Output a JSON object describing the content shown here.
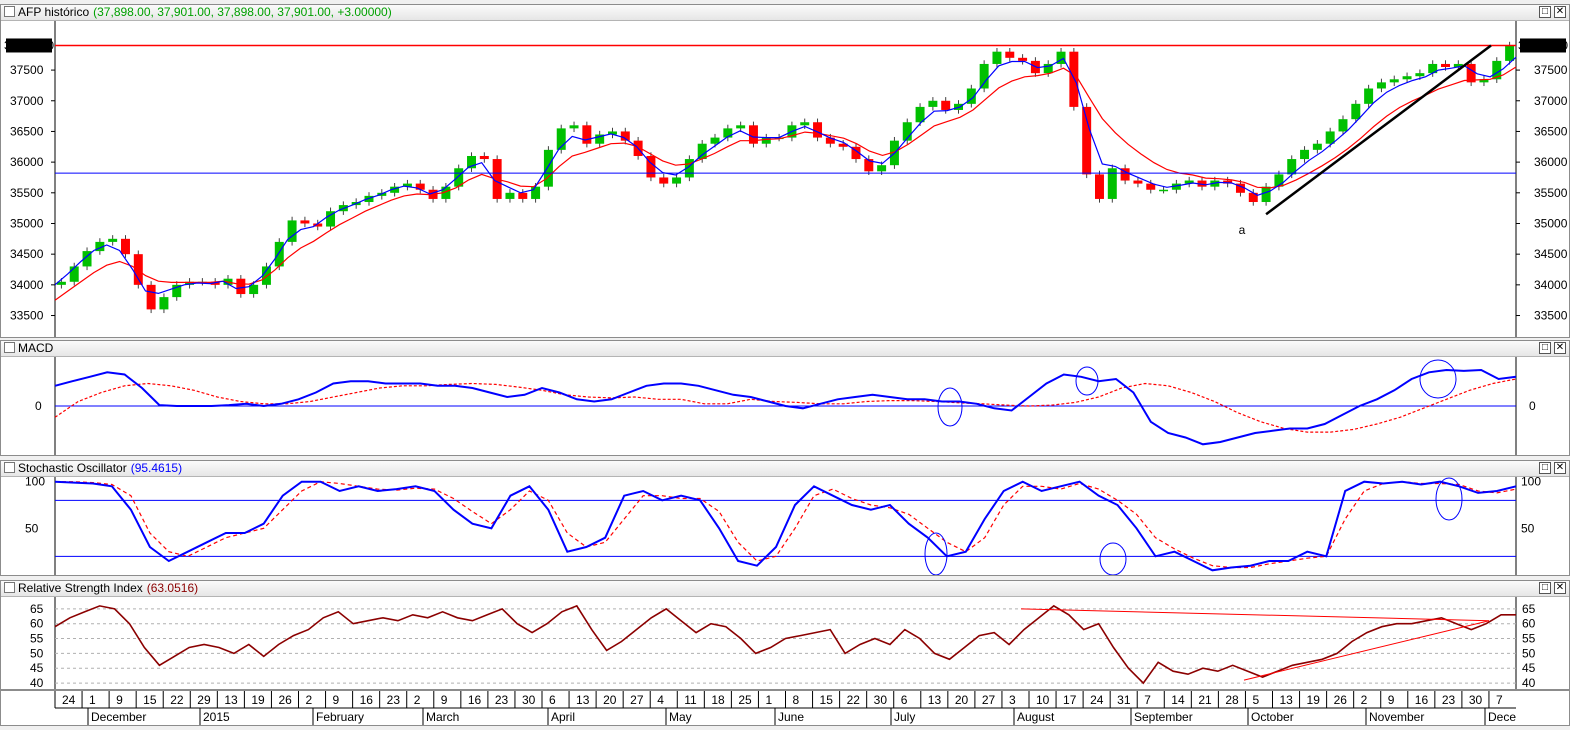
{
  "panes": {
    "price": {
      "title": "AFP histórico",
      "value_text": "(37,898.00, 37,901.00, 37,898.00, 37,901.00, +3.00000)",
      "value_color": "#00a000",
      "last_label": "37901.00",
      "ticks": [
        "37500",
        "37000",
        "36500",
        "36000",
        "35500",
        "35000",
        "34500",
        "34000",
        "33500"
      ],
      "wave_label": "a"
    },
    "macd": {
      "title": "MACD",
      "value_text": "",
      "ticks": [
        "0"
      ]
    },
    "stoch": {
      "title": "Stochastic Oscillator",
      "value_text": "(95.4615)",
      "value_color": "#0000ff",
      "ticks": [
        "100",
        "50"
      ]
    },
    "rsi": {
      "title": "Relative Strength Index",
      "value_text": "(63.0516)",
      "value_color": "#8b0000",
      "ticks": [
        "65",
        "60",
        "55",
        "50",
        "45",
        "40"
      ]
    }
  },
  "window_buttons": {
    "maximize": "□",
    "close": "✕"
  },
  "time_axis": {
    "day_labels": [
      "24",
      "1",
      "9",
      "15",
      "22",
      "29",
      "13",
      "19",
      "26",
      "2",
      "9",
      "16",
      "23",
      "2",
      "9",
      "16",
      "23",
      "30",
      "6",
      "13",
      "20",
      "27",
      "4",
      "11",
      "18",
      "25",
      "1",
      "8",
      "15",
      "22",
      "30",
      "6",
      "13",
      "20",
      "27",
      "3",
      "10",
      "17",
      "24",
      "31",
      "7",
      "14",
      "21",
      "28",
      "5",
      "13",
      "19",
      "26",
      "2",
      "9",
      "16",
      "23",
      "30",
      "7"
    ],
    "month_labels": [
      "December",
      "2015",
      "February",
      "March",
      "April",
      "May",
      "June",
      "July",
      "August",
      "September",
      "October",
      "November",
      "Dece"
    ]
  },
  "colors": {
    "candle_up": "#00c000",
    "candle_down": "#ff0000",
    "macd_line": "#0000ff",
    "signal_line": "#ff0000",
    "rsi_line": "#8b0000",
    "level_line": "#0000ff",
    "resistance_line": "#ff0000",
    "trend_line": "#000000"
  },
  "chart_data": [
    {
      "type": "line",
      "title": "AFP histórico",
      "ylim": [
        33150,
        38300
      ],
      "price_levels": {
        "resistance": 37901,
        "support": 35820
      },
      "last_close": 37901,
      "series": [
        {
          "name": "close",
          "values": [
            34050,
            34300,
            34550,
            34700,
            34750,
            34500,
            34000,
            33600,
            33800,
            34000,
            34050,
            34050,
            34000,
            34100,
            33850,
            34000,
            34300,
            34700,
            35050,
            35000,
            34950,
            35200,
            35300,
            35350,
            35450,
            35500,
            35600,
            35650,
            35550,
            35400,
            35600,
            35900,
            36100,
            36050,
            35400,
            35500,
            35400,
            35600,
            36200,
            36550,
            36600,
            36300,
            36450,
            36500,
            36350,
            36100,
            35750,
            35650,
            35750,
            36050,
            36300,
            36400,
            36550,
            36600,
            36300,
            36400,
            36400,
            36600,
            36650,
            36400,
            36300,
            36250,
            36050,
            35850,
            35950,
            36350,
            36650,
            36900,
            37000,
            36850,
            36950,
            37200,
            37600,
            37800,
            37700,
            37650,
            37450,
            37600,
            37800,
            36900,
            35800,
            35400,
            35900,
            35700,
            35650,
            35550,
            35550,
            35650,
            35700,
            35600,
            35700,
            35650,
            35500,
            35350,
            35600,
            35800,
            36050,
            36200,
            36300,
            36500,
            36700,
            36950,
            37200,
            37300,
            37350,
            37400,
            37450,
            37600,
            37550,
            37600,
            37300,
            37350,
            37650,
            37901
          ]
        },
        {
          "name": "moving-average-fast",
          "values": [
            34000,
            34180,
            34380,
            34560,
            34650,
            34560,
            34250,
            33900,
            33860,
            33930,
            34000,
            34030,
            34020,
            34060,
            33940,
            33970,
            34140,
            34420,
            34740,
            34900,
            34950,
            35100,
            35220,
            35300,
            35390,
            35460,
            35550,
            35610,
            35580,
            35480,
            35550,
            35730,
            35920,
            35990,
            35700,
            35600,
            35500,
            35550,
            35880,
            36220,
            36420,
            36360,
            36410,
            36460,
            36400,
            36250,
            36000,
            35830,
            35790,
            35920,
            36110,
            36260,
            36410,
            36510,
            36410,
            36400,
            36400,
            36500,
            36580,
            36490,
            36390,
            36320,
            36180,
            36020,
            35980,
            36160,
            36410,
            36650,
            36830,
            36840,
            36900,
            37050,
            37330,
            37570,
            37640,
            37640,
            37540,
            37570,
            37690,
            37290,
            36540,
            35970,
            35930,
            35820,
            35730,
            35640,
            35590,
            35620,
            35660,
            35630,
            35670,
            35660,
            35580,
            35460,
            35530,
            35670,
            35860,
            36030,
            36170,
            36340,
            36520,
            36740,
            36970,
            37140,
            37250,
            37330,
            37390,
            37500,
            37530,
            37570,
            37440,
            37390,
            37520,
            37710
          ]
        },
        {
          "name": "moving-average-slow",
          "values": [
            33750,
            33900,
            34050,
            34200,
            34320,
            34380,
            34300,
            34150,
            34060,
            34040,
            34040,
            34040,
            34040,
            34060,
            34020,
            34010,
            34080,
            34240,
            34440,
            34600,
            34710,
            34850,
            34980,
            35090,
            35200,
            35290,
            35380,
            35450,
            35480,
            35470,
            35500,
            35580,
            35710,
            35800,
            35730,
            35680,
            35610,
            35600,
            35730,
            35930,
            36100,
            36160,
            36230,
            36300,
            36310,
            36260,
            36140,
            36020,
            35950,
            35970,
            36050,
            36140,
            36250,
            36350,
            36350,
            36370,
            36380,
            36430,
            36490,
            36470,
            36430,
            36390,
            36300,
            36180,
            36110,
            36170,
            36290,
            36440,
            36590,
            36660,
            36730,
            36850,
            37030,
            37210,
            37320,
            37390,
            37410,
            37450,
            37530,
            37400,
            37050,
            36710,
            36480,
            36290,
            36130,
            35990,
            35880,
            35820,
            35790,
            35740,
            35730,
            35710,
            35670,
            35590,
            35580,
            35620,
            35710,
            35820,
            35940,
            36070,
            36220,
            36390,
            36580,
            36750,
            36890,
            37000,
            37090,
            37190,
            37260,
            37330,
            37340,
            37350,
            37420,
            37550
          ]
        }
      ]
    },
    {
      "type": "line",
      "title": "MACD",
      "ylim": [
        -1,
        1
      ],
      "series": [
        {
          "name": "macd",
          "values": [
            0.45,
            0.55,
            0.65,
            0.75,
            0.7,
            0.4,
            0.02,
            0,
            0,
            0,
            0.02,
            0.05,
            0,
            0.05,
            0.15,
            0.3,
            0.5,
            0.55,
            0.55,
            0.5,
            0.5,
            0.5,
            0.45,
            0.45,
            0.4,
            0.3,
            0.2,
            0.25,
            0.4,
            0.3,
            0.15,
            0.1,
            0.15,
            0.3,
            0.45,
            0.5,
            0.5,
            0.45,
            0.35,
            0.25,
            0.2,
            0.1,
            0.0,
            -0.05,
            0.05,
            0.15,
            0.2,
            0.25,
            0.2,
            0.15,
            0.15,
            0.1,
            0.1,
            0.05,
            -0.05,
            -0.1,
            0.2,
            0.5,
            0.7,
            0.65,
            0.55,
            0.6,
            0.3,
            -0.35,
            -0.6,
            -0.7,
            -0.85,
            -0.8,
            -0.7,
            -0.6,
            -0.55,
            -0.5,
            -0.5,
            -0.4,
            -0.2,
            0.0,
            0.15,
            0.35,
            0.6,
            0.75,
            0.8,
            0.78,
            0.8,
            0.6,
            0.65
          ]
        },
        {
          "name": "signal",
          "values": [
            -0.25,
            0.1,
            0.3,
            0.45,
            0.5,
            0.45,
            0.35,
            0.2,
            0.1,
            0.05,
            0.05,
            0.1,
            0.2,
            0.3,
            0.4,
            0.45,
            0.45,
            0.48,
            0.5,
            0.48,
            0.42,
            0.35,
            0.25,
            0.2,
            0.18,
            0.2,
            0.15,
            0.15,
            0.05,
            0.05,
            0.15,
            0.1,
            0.08,
            0.05,
            0.05,
            0.1,
            0.12,
            0.12,
            0.1,
            0.07,
            0.05,
            0.02,
            0.0,
            0.02,
            0.08,
            0.2,
            0.4,
            0.5,
            0.45,
            0.3,
            0.1,
            -0.15,
            -0.35,
            -0.5,
            -0.58,
            -0.58,
            -0.52,
            -0.4,
            -0.25,
            -0.05,
            0.15,
            0.35,
            0.5,
            0.6
          ]
        }
      ]
    },
    {
      "type": "line",
      "title": "Stochastic Oscillator",
      "ylim": [
        0,
        105
      ],
      "levels": [
        80,
        20
      ],
      "series": [
        {
          "name": "%K",
          "values": [
            100,
            99,
            98,
            95,
            70,
            30,
            15,
            25,
            35,
            45,
            45,
            55,
            85,
            100,
            100,
            90,
            95,
            90,
            92,
            95,
            90,
            70,
            55,
            50,
            85,
            95,
            70,
            25,
            30,
            40,
            85,
            90,
            80,
            85,
            80,
            50,
            15,
            10,
            30,
            75,
            95,
            85,
            75,
            70,
            75,
            55,
            40,
            20,
            25,
            60,
            90,
            100,
            90,
            95,
            100,
            85,
            75,
            50,
            20,
            25,
            15,
            5,
            8,
            10,
            15,
            15,
            25,
            20,
            90,
            100,
            98,
            100,
            97,
            100,
            95,
            88,
            90,
            95
          ]
        },
        {
          "name": "%D",
          "values": [
            100,
            100,
            99,
            97,
            85,
            45,
            25,
            20,
            30,
            40,
            45,
            50,
            70,
            90,
            100,
            98,
            95,
            92,
            91,
            93,
            92,
            82,
            68,
            55,
            70,
            90,
            80,
            45,
            30,
            35,
            60,
            85,
            85,
            82,
            82,
            68,
            35,
            15,
            20,
            50,
            85,
            92,
            82,
            75,
            72,
            65,
            50,
            35,
            25,
            40,
            75,
            95,
            95,
            92,
            98,
            92,
            80,
            65,
            40,
            28,
            18,
            10,
            8,
            8,
            12,
            15,
            18,
            20,
            60,
            90,
            98,
            100,
            98,
            98,
            97,
            90,
            88,
            92
          ]
        }
      ]
    },
    {
      "type": "line",
      "title": "Relative Strength Index",
      "ylim": [
        38,
        69
      ],
      "levels": [
        65,
        60,
        55,
        50,
        45,
        40
      ],
      "series": [
        {
          "name": "rsi",
          "values": [
            59,
            62,
            64,
            66,
            65,
            60,
            52,
            46,
            49,
            52,
            53,
            52,
            50,
            53,
            49,
            53,
            56,
            58,
            62,
            64,
            60,
            61,
            62,
            61,
            63,
            62,
            64,
            62,
            61,
            63,
            65,
            60,
            57,
            60,
            64,
            66,
            58,
            51,
            54,
            58,
            62,
            65,
            61,
            57,
            60,
            59,
            55,
            50,
            52,
            55,
            56,
            57,
            58,
            50,
            53,
            55,
            53,
            58,
            55,
            50,
            48,
            52,
            56,
            57,
            53,
            58,
            62,
            66,
            63,
            58,
            60,
            52,
            45,
            40,
            47,
            44,
            43,
            45,
            44,
            46,
            44,
            42,
            44,
            46,
            47,
            48,
            50,
            54,
            57,
            59,
            60,
            60,
            61,
            62,
            60,
            58,
            60,
            63,
            63
          ]
        }
      ]
    }
  ]
}
